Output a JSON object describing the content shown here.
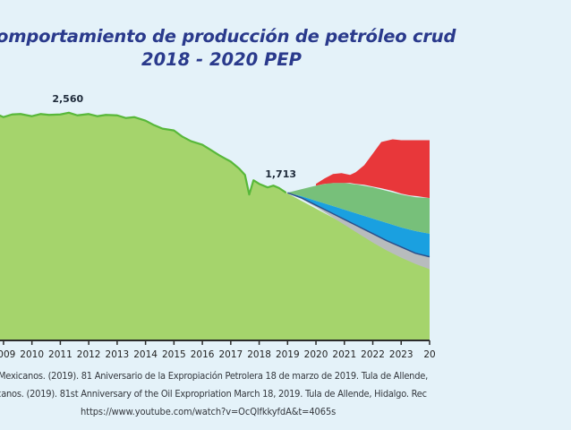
{
  "title": {
    "line1": "omportamiento de producción de petróleo crud",
    "line2": "2018 - 2020 PEP"
  },
  "sources": {
    "es": "Mexicanos. (2019). 81 Aniversario de la Expropiación Petrolera 18 de marzo de 2019. Tula de Allende,",
    "en": "canos. (2019). 81st Anniversary of the Oil Expropriation March 18, 2019. Tula de Allende, Hidalgo. Rec",
    "url": "https://www.youtube.com/watch?v=OcQlfkkyfdA&t=4065s"
  },
  "colors": {
    "background": "#e4f2f9",
    "historical_fill": "#a5d46c",
    "historical_line": "#58b83a",
    "red": "#e8373a",
    "green": "#77c07a",
    "blue": "#1aa0e0",
    "gray": "#b8bcbd",
    "title": "#2a3a8c",
    "axis": "#2b2b2b"
  },
  "chart_data": {
    "type": "area",
    "x_ticks": [
      "2009",
      "2010",
      "2011",
      "2012",
      "2013",
      "2014",
      "2015",
      "2016",
      "2017",
      "2018",
      "2019",
      "2020",
      "2021",
      "2022",
      "2023",
      "20"
    ],
    "annotations": [
      {
        "label": "2,560",
        "x": 2011.2,
        "y": 2560
      },
      {
        "label": "1,713",
        "x": 2018.6,
        "y": 1713
      }
    ],
    "historical": {
      "x": [
        2008.7,
        2009.0,
        2009.3,
        2009.6,
        2010.0,
        2010.3,
        2010.6,
        2011.0,
        2011.3,
        2011.6,
        2012.0,
        2012.3,
        2012.6,
        2013.0,
        2013.3,
        2013.6,
        2014.0,
        2014.3,
        2014.6,
        2015.0,
        2015.3,
        2015.6,
        2016.0,
        2016.3,
        2016.6,
        2017.0,
        2017.3,
        2017.5,
        2017.65,
        2017.8,
        2018.0,
        2018.3,
        2018.5,
        2018.7,
        2018.95
      ],
      "y": [
        2550,
        2510,
        2540,
        2545,
        2520,
        2545,
        2535,
        2540,
        2560,
        2530,
        2545,
        2520,
        2535,
        2530,
        2500,
        2510,
        2470,
        2420,
        2380,
        2360,
        2290,
        2240,
        2200,
        2140,
        2080,
        2010,
        1930,
        1860,
        1640,
        1800,
        1760,
        1720,
        1740,
        1713,
        1660
      ]
    },
    "projections": [
      {
        "name": "",
        "color_key": "gray",
        "x": [
          2019.0,
          2019.5,
          2020.0,
          2020.5,
          2021.0,
          2021.5,
          2022.0,
          2022.5,
          2023.0,
          2023.5,
          2024.0
        ],
        "upper": [
          1660,
          1600,
          1520,
          1440,
          1360,
          1280,
          1200,
          1120,
          1050,
          980,
          940
        ],
        "lower": [
          1660,
          1590,
          1500,
          1400,
          1300,
          1200,
          1100,
          1010,
          930,
          860,
          800
        ]
      },
      {
        "name": "",
        "color_key": "blue",
        "x": [
          2019.0,
          2019.5,
          2020.0,
          2020.5,
          2021.0,
          2021.5,
          2022.0,
          2022.5,
          2023.0,
          2023.5,
          2024.0
        ],
        "upper": [
          1660,
          1620,
          1570,
          1520,
          1470,
          1420,
          1370,
          1320,
          1270,
          1230,
          1200
        ],
        "lower": [
          1660,
          1600,
          1520,
          1440,
          1360,
          1280,
          1200,
          1120,
          1050,
          980,
          940
        ]
      },
      {
        "name": "",
        "color_key": "green",
        "x": [
          2019.0,
          2019.5,
          2020.0,
          2020.5,
          2021.0,
          2021.5,
          2022.0,
          2022.5,
          2023.0,
          2023.5,
          2024.0
        ],
        "upper": [
          1660,
          1700,
          1740,
          1770,
          1770,
          1750,
          1720,
          1680,
          1640,
          1610,
          1600
        ],
        "lower": [
          1660,
          1620,
          1570,
          1520,
          1470,
          1420,
          1370,
          1320,
          1270,
          1230,
          1200
        ]
      },
      {
        "name": "",
        "color_key": "red",
        "x": [
          2020.0,
          2020.3,
          2020.6,
          2020.9,
          2021.2,
          2021.4,
          2021.7,
          2022.0,
          2022.3,
          2022.7,
          2023.0,
          2023.3,
          2023.6,
          2024.0
        ],
        "upper": [
          1760,
          1820,
          1870,
          1880,
          1860,
          1890,
          1970,
          2100,
          2230,
          2260,
          2250,
          2250,
          2250,
          2250
        ],
        "lower": [
          1740,
          1760,
          1770,
          1770,
          1770,
          1760,
          1750,
          1730,
          1710,
          1680,
          1650,
          1630,
          1620,
          1600
        ]
      }
    ],
    "x_range": [
      2008.75,
      2024.0
    ],
    "y_range": [
      0,
      2900
    ]
  }
}
